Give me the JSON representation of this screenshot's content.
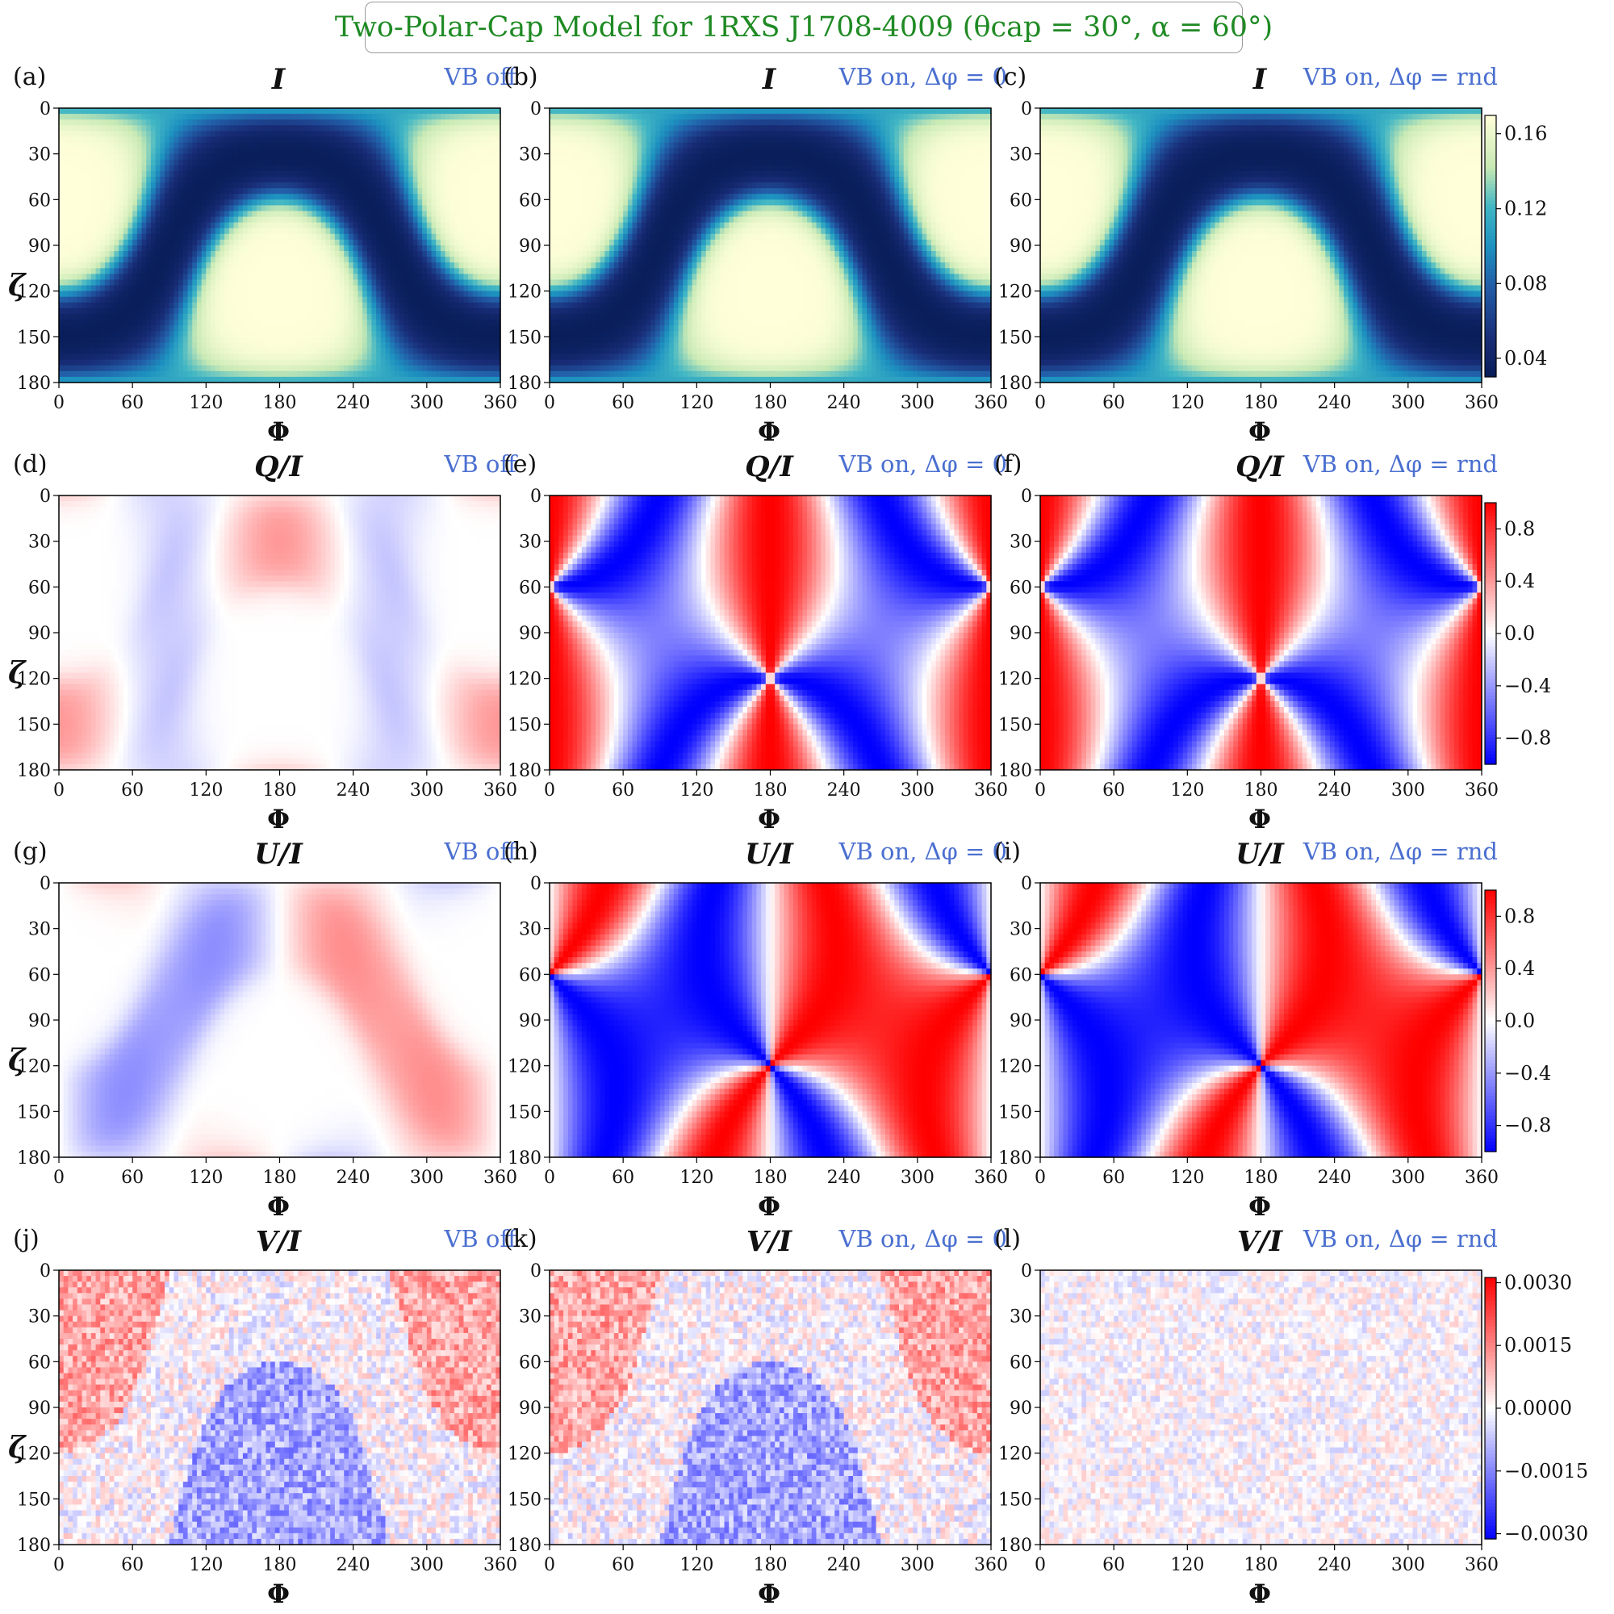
{
  "figure": {
    "title": "Two-Polar-Cap Model for 1RXS J1708-4009 (θcap = 30°, α = 60°)"
  },
  "axes": {
    "xlabel": "Φ",
    "ylabel": "ζ",
    "xticks": [
      "0",
      "60",
      "120",
      "180",
      "240",
      "300",
      "360"
    ],
    "yticks": [
      "0",
      "30",
      "60",
      "90",
      "120",
      "150",
      "180"
    ]
  },
  "conditions": {
    "off": "VB off",
    "on0": "VB on, Δφ = 0",
    "onrnd": "VB on, Δφ = rnd"
  },
  "rows": [
    {
      "title": "I",
      "labels": [
        "(a)",
        "(b)",
        "(c)"
      ],
      "colormap": "YlGnBu",
      "colorbar_ticks": [
        "0.16",
        "0.12",
        "0.08",
        "0.04"
      ]
    },
    {
      "title": "Q/I",
      "labels": [
        "(d)",
        "(e)",
        "(f)"
      ],
      "colormap": "bwr",
      "colorbar_ticks": [
        "0.8",
        "0.4",
        "0.0",
        "−0.4",
        "−0.8"
      ]
    },
    {
      "title": "U/I",
      "labels": [
        "(g)",
        "(h)",
        "(i)"
      ],
      "colormap": "bwr",
      "colorbar_ticks": [
        "0.8",
        "0.4",
        "0.0",
        "−0.4",
        "−0.8"
      ]
    },
    {
      "title": "V/I",
      "labels": [
        "(j)",
        "(k)",
        "(l)"
      ],
      "colormap": "bwr",
      "colorbar_ticks": [
        "0.0030",
        "0.0015",
        "0.0000",
        "−0.0015",
        "−0.0030"
      ]
    }
  ],
  "chart_data": {
    "type": "heatmap",
    "x_range": [
      0,
      360
    ],
    "y_range": [
      0,
      180
    ],
    "y_inverted": true,
    "caps": {
      "theta_cap_deg": 30,
      "alpha_deg": 60
    },
    "colorbar_ranges": {
      "I": [
        0.03,
        0.17
      ],
      "Q/I": [
        -1.0,
        1.0
      ],
      "U/I": [
        -1.0,
        1.0
      ],
      "V/I": [
        -0.003,
        0.003
      ]
    },
    "panels": [
      {
        "label": "(a)",
        "quantity": "I",
        "condition": "VB off"
      },
      {
        "label": "(b)",
        "quantity": "I",
        "condition": "VB on, Δφ = 0"
      },
      {
        "label": "(c)",
        "quantity": "I",
        "condition": "VB on, Δφ = rnd"
      },
      {
        "label": "(d)",
        "quantity": "Q/I",
        "condition": "VB off"
      },
      {
        "label": "(e)",
        "quantity": "Q/I",
        "condition": "VB on, Δφ = 0"
      },
      {
        "label": "(f)",
        "quantity": "Q/I",
        "condition": "VB on, Δφ = rnd"
      },
      {
        "label": "(g)",
        "quantity": "U/I",
        "condition": "VB off"
      },
      {
        "label": "(h)",
        "quantity": "U/I",
        "condition": "VB on, Δφ = 0"
      },
      {
        "label": "(i)",
        "quantity": "U/I",
        "condition": "VB on, Δφ = rnd"
      },
      {
        "label": "(j)",
        "quantity": "V/I",
        "condition": "VB off"
      },
      {
        "label": "(k)",
        "quantity": "V/I",
        "condition": "VB on, Δφ = 0"
      },
      {
        "label": "(l)",
        "quantity": "V/I",
        "condition": "VB on, Δφ = rnd"
      }
    ]
  }
}
